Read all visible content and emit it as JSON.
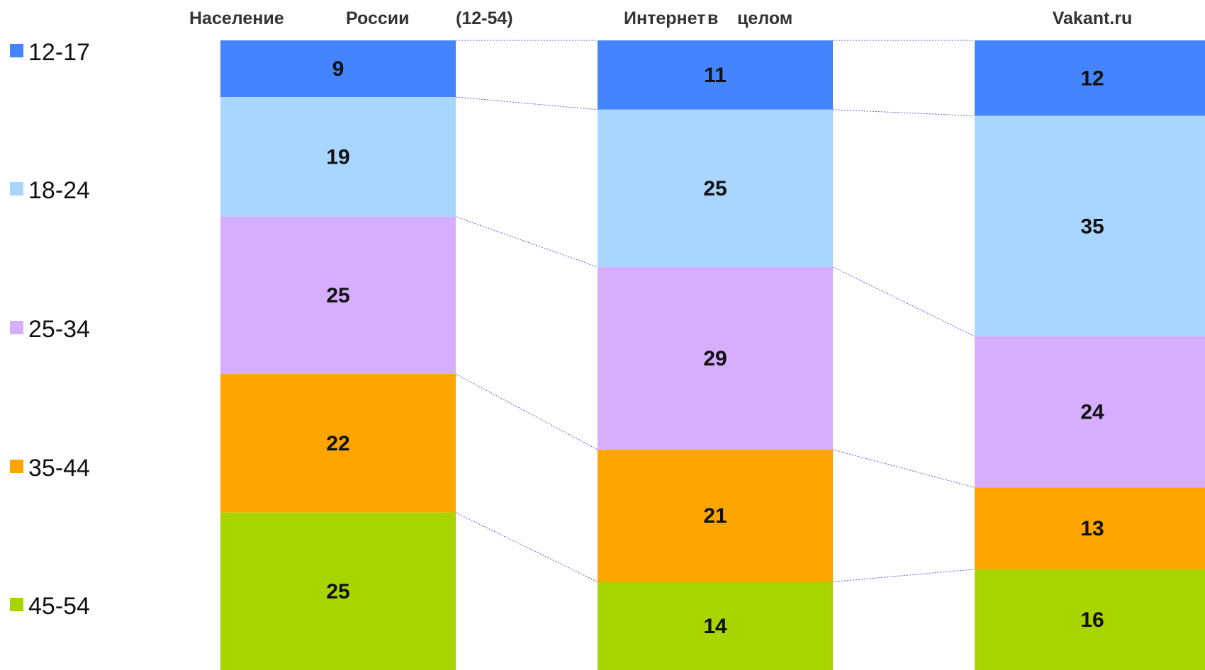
{
  "chart_data": {
    "type": "bar",
    "stacked": true,
    "normalized": true,
    "categories": [
      "Население России (12-54)",
      "Интернет в целом",
      "Vakant.ru"
    ],
    "title_parts": [
      [
        "Население",
        "России",
        "(12-54)"
      ],
      [
        "Интернет",
        "в",
        "целом"
      ],
      [
        "Vakant.ru"
      ]
    ],
    "series": [
      {
        "name": "12-17",
        "color": "#4485FF",
        "values": [
          9,
          11,
          12
        ]
      },
      {
        "name": "18-24",
        "color": "#A9D6FF",
        "values": [
          19,
          25,
          35
        ]
      },
      {
        "name": "25-34",
        "color": "#D6ADFF",
        "values": [
          25,
          29,
          24
        ]
      },
      {
        "name": "35-44",
        "color": "#FFA500",
        "values": [
          22,
          21,
          13
        ]
      },
      {
        "name": "45-54",
        "color": "#A8D400",
        "values": [
          25,
          14,
          16
        ]
      }
    ],
    "legend": "left",
    "connector_color": "#6A4EE0",
    "grid": false
  }
}
